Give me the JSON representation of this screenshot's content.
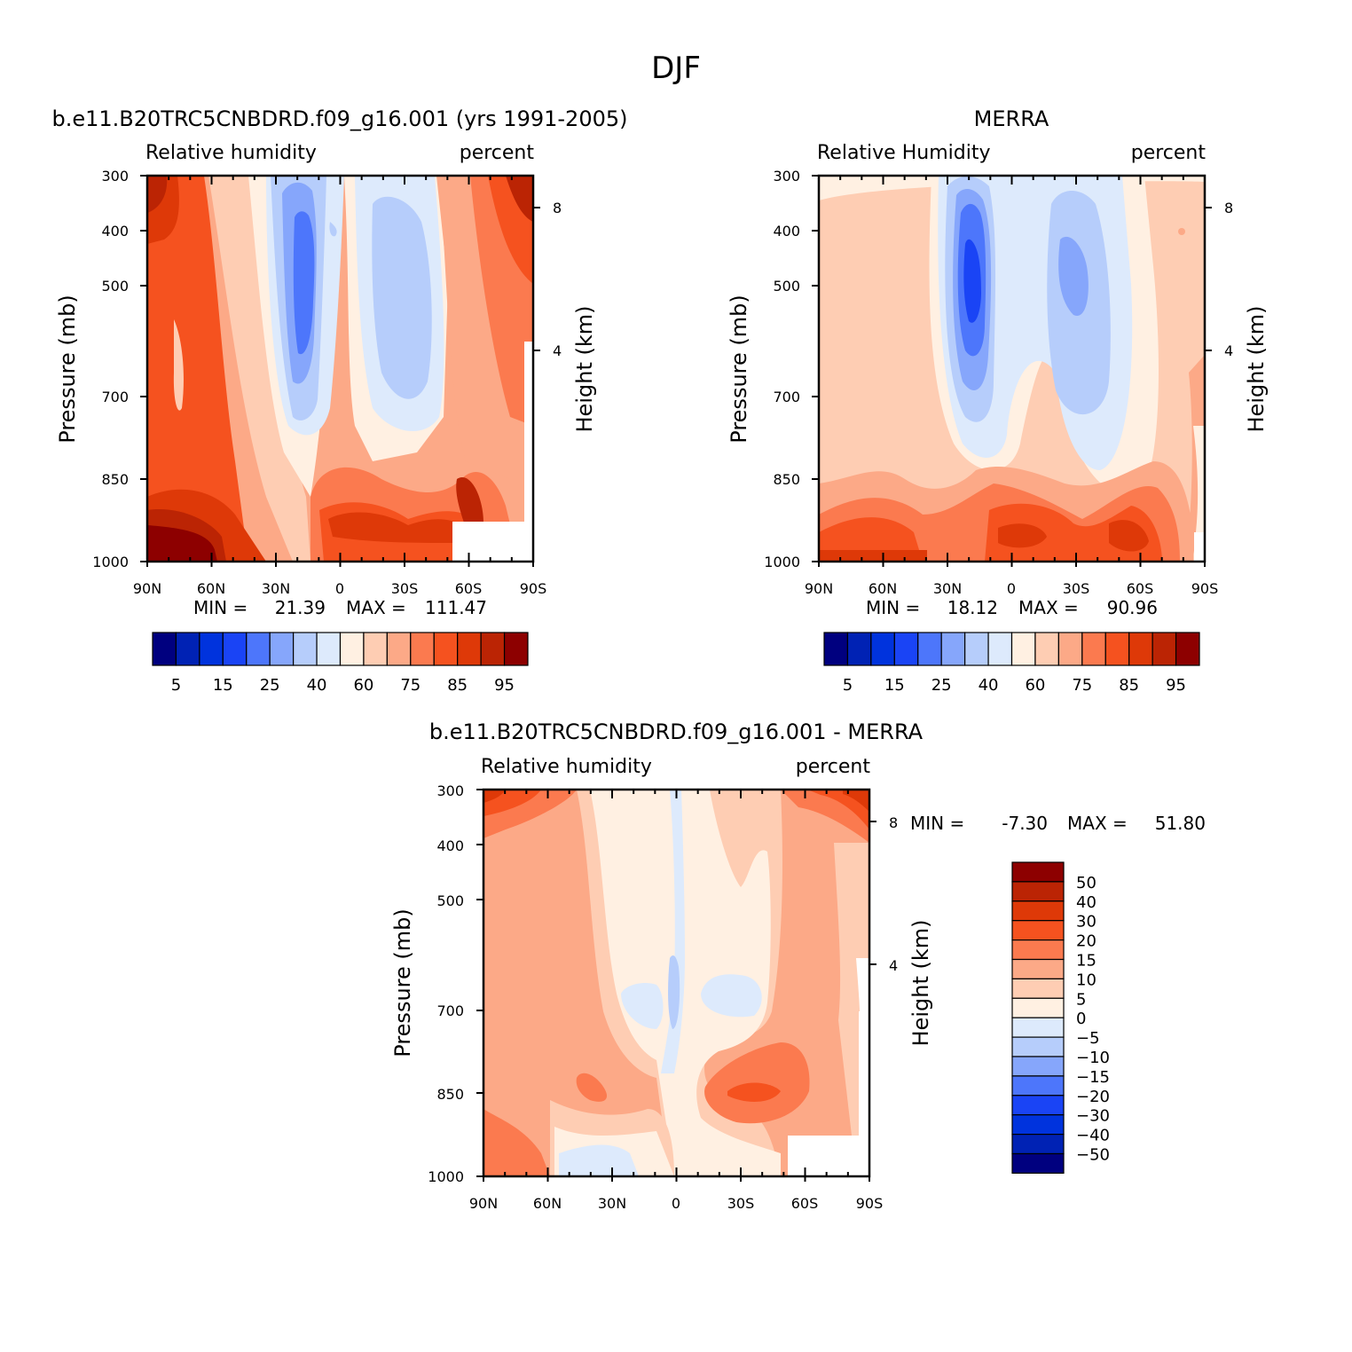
{
  "figure": {
    "title": "DJF"
  },
  "colors": {
    "rh_scale": [
      "#00007f",
      "#0022b4",
      "#0033dd",
      "#1a44f5",
      "#4d76fb",
      "#86a6fb",
      "#b6cdfb",
      "#ddeafc",
      "#fff0e2",
      "#fecdb3",
      "#fca987",
      "#fb7a4f",
      "#f5521f",
      "#de3908",
      "#bb2404",
      "#8d0000"
    ],
    "diff_scale": [
      "#00007f",
      "#0022b4",
      "#0033dd",
      "#1a44f5",
      "#4d76fb",
      "#86a6fb",
      "#b6cdfb",
      "#ddeafc",
      "#fff0e2",
      "#fecdb3",
      "#fca987",
      "#fb7a4f",
      "#f5521f",
      "#de3908",
      "#bb2404",
      "#8d0000"
    ]
  },
  "chart_data": [
    {
      "id": "model",
      "type": "heatmap",
      "title": "b.e11.B20TRC5CNBDRD.f09_g16.001 (yrs 1991-2005)",
      "left_label": "Relative humidity",
      "right_label": "percent",
      "ylabel": "Pressure (mb)",
      "y2label": "Height (km)",
      "x_ticks": [
        "90N",
        "60N",
        "30N",
        "0",
        "30S",
        "60S",
        "90S"
      ],
      "y_ticks": [
        "300",
        "400",
        "500",
        "700",
        "850",
        "1000"
      ],
      "y2_ticks": [
        "8",
        "4"
      ],
      "stats": {
        "min_label": "MIN =",
        "min": "21.39",
        "max_label": "MAX =",
        "max": "111.47"
      },
      "levels": [
        5,
        10,
        15,
        20,
        25,
        30,
        40,
        50,
        60,
        70,
        75,
        80,
        85,
        90,
        95
      ],
      "colorbar_labels": [
        "5",
        "15",
        "25",
        "40",
        "60",
        "75",
        "85",
        "95"
      ]
    },
    {
      "id": "obs",
      "type": "heatmap",
      "title": "MERRA",
      "left_label": "Relative Humidity",
      "right_label": "percent",
      "ylabel": "Pressure (mb)",
      "y2label": "Height (km)",
      "x_ticks": [
        "90N",
        "60N",
        "30N",
        "0",
        "30S",
        "60S",
        "90S"
      ],
      "y_ticks": [
        "300",
        "400",
        "500",
        "700",
        "850",
        "1000"
      ],
      "y2_ticks": [
        "8",
        "4"
      ],
      "stats": {
        "min_label": "MIN =",
        "min": "18.12",
        "max_label": "MAX =",
        "max": "90.96"
      },
      "levels": [
        5,
        10,
        15,
        20,
        25,
        30,
        40,
        50,
        60,
        70,
        75,
        80,
        85,
        90,
        95
      ],
      "colorbar_labels": [
        "5",
        "15",
        "25",
        "40",
        "60",
        "75",
        "85",
        "95"
      ]
    },
    {
      "id": "diff",
      "type": "heatmap",
      "title": "b.e11.B20TRC5CNBDRD.f09_g16.001 - MERRA",
      "left_label": "Relative humidity",
      "right_label": "percent",
      "ylabel": "Pressure (mb)",
      "y2label": "Height (km)",
      "x_ticks": [
        "90N",
        "60N",
        "30N",
        "0",
        "30S",
        "60S",
        "90S"
      ],
      "y_ticks": [
        "300",
        "400",
        "500",
        "700",
        "850",
        "1000"
      ],
      "y2_ticks": [
        "8",
        "4"
      ],
      "stats": {
        "min_label": "MIN =",
        "min": "-7.30",
        "max_label": "MAX =",
        "max": "51.80"
      },
      "levels": [
        -50,
        -40,
        -30,
        -20,
        -15,
        -10,
        -5,
        0,
        5,
        10,
        15,
        20,
        30,
        40,
        50
      ],
      "colorbar_labels": [
        "50",
        "40",
        "30",
        "20",
        "15",
        "10",
        "5",
        "0",
        "−5",
        "−10",
        "−15",
        "−20",
        "−30",
        "−40",
        "−50"
      ]
    }
  ]
}
